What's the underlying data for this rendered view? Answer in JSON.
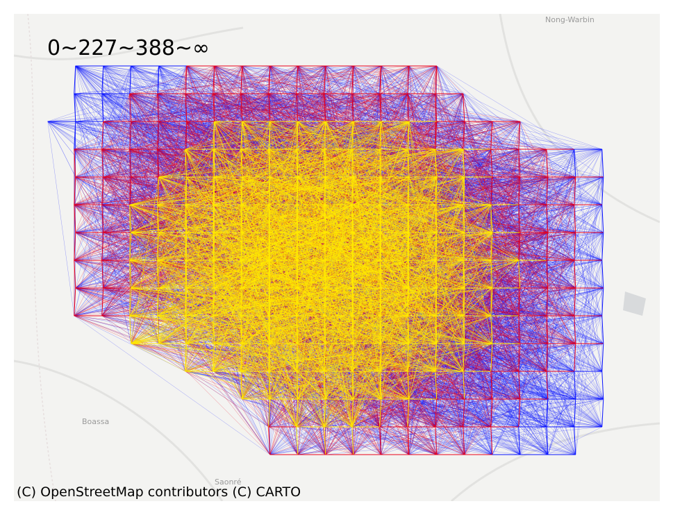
{
  "map": {
    "legend_title": "0~227~388~∞",
    "attribution": "(C) OpenStreetMap contributors (C) CARTO",
    "basemap": "carto-light",
    "place_labels": [
      {
        "name": "Nong-Warbin"
      },
      {
        "name": "Boassa"
      },
      {
        "name": "Saonré"
      }
    ],
    "flow_classes": [
      {
        "range": "0~227",
        "color": "#0a14ff"
      },
      {
        "range": "227~388",
        "color": "#e8001c"
      },
      {
        "range": "388~∞",
        "color": "#ffea00"
      }
    ],
    "background_color": "#f3f3f1"
  }
}
